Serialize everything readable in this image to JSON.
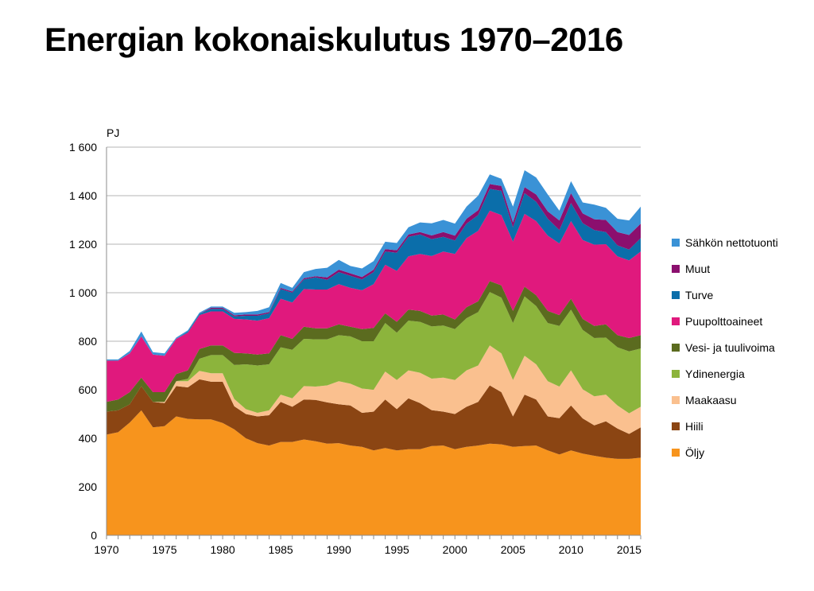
{
  "title": "Energian kokonaiskulutus 1970–2016",
  "chart_data": {
    "type": "area",
    "stacked": true,
    "title": "Energian kokonaiskulutus 1970–2016",
    "unit": "PJ",
    "xlabel": "",
    "ylabel": "PJ",
    "xlim": [
      1970,
      2016
    ],
    "ylim": [
      0,
      1600
    ],
    "y_ticks": [
      0,
      200,
      400,
      600,
      800,
      1000,
      1200,
      1400,
      1600
    ],
    "y_tick_labels": [
      "0",
      "200",
      "400",
      "600",
      "800",
      "1 000",
      "1 200",
      "1 400",
      "1 600"
    ],
    "x_ticks": [
      1970,
      1975,
      1980,
      1985,
      1990,
      1995,
      2000,
      2005,
      2010,
      2015
    ],
    "x_tick_labels": [
      "1970",
      "1975",
      "1980",
      "1985",
      "1990",
      "1995",
      "2000",
      "2005",
      "2010",
      "2015"
    ],
    "grid": true,
    "legend_position": "right",
    "x": [
      1970,
      1971,
      1972,
      1973,
      1974,
      1975,
      1976,
      1977,
      1978,
      1979,
      1980,
      1981,
      1982,
      1983,
      1984,
      1985,
      1986,
      1987,
      1988,
      1989,
      1990,
      1991,
      1992,
      1993,
      1994,
      1995,
      1996,
      1997,
      1998,
      1999,
      2000,
      2001,
      2002,
      2003,
      2004,
      2005,
      2006,
      2007,
      2008,
      2009,
      2010,
      2011,
      2012,
      2013,
      2014,
      2015,
      2016
    ],
    "series": [
      {
        "name": "Öljy",
        "color": "#f7941d",
        "values": [
          415,
          425,
          465,
          515,
          445,
          450,
          490,
          480,
          478,
          478,
          463,
          437,
          400,
          380,
          370,
          385,
          385,
          395,
          388,
          378,
          380,
          370,
          365,
          350,
          360,
          350,
          355,
          355,
          368,
          370,
          355,
          365,
          370,
          378,
          375,
          365,
          368,
          370,
          350,
          333,
          350,
          337,
          328,
          320,
          315,
          315,
          320
        ]
      },
      {
        "name": "Hiili",
        "color": "#8b4513",
        "values": [
          95,
          90,
          75,
          100,
          105,
          95,
          125,
          130,
          165,
          155,
          170,
          95,
          100,
          110,
          125,
          165,
          145,
          165,
          170,
          170,
          160,
          165,
          140,
          160,
          200,
          170,
          210,
          190,
          148,
          140,
          145,
          165,
          180,
          240,
          215,
          125,
          212,
          190,
          140,
          150,
          185,
          145,
          125,
          150,
          125,
          103,
          125
        ]
      },
      {
        "name": "Maakaasu",
        "color": "#fac08f",
        "values": [
          0,
          0,
          0,
          0,
          0,
          5,
          20,
          25,
          35,
          35,
          35,
          30,
          20,
          15,
          20,
          30,
          35,
          55,
          55,
          70,
          95,
          90,
          100,
          90,
          115,
          120,
          115,
          125,
          130,
          140,
          140,
          150,
          150,
          165,
          160,
          150,
          160,
          145,
          145,
          130,
          145,
          120,
          120,
          110,
          95,
          85,
          85
        ]
      },
      {
        "name": "Ydinenergia",
        "color": "#8cb43c",
        "values": [
          0,
          0,
          0,
          0,
          0,
          0,
          0,
          10,
          50,
          75,
          75,
          140,
          185,
          195,
          190,
          195,
          200,
          195,
          195,
          190,
          190,
          195,
          195,
          200,
          200,
          195,
          205,
          210,
          215,
          215,
          210,
          215,
          220,
          220,
          230,
          235,
          245,
          240,
          240,
          250,
          250,
          245,
          240,
          235,
          240,
          255,
          240
        ]
      },
      {
        "name": "Vesi- ja tuulivoima",
        "color": "#5b6b1f",
        "values": [
          40,
          45,
          50,
          35,
          40,
          40,
          30,
          35,
          40,
          40,
          40,
          50,
          45,
          45,
          45,
          50,
          45,
          50,
          45,
          45,
          45,
          40,
          50,
          55,
          40,
          45,
          45,
          45,
          45,
          45,
          40,
          45,
          45,
          45,
          50,
          50,
          40,
          45,
          50,
          45,
          45,
          45,
          50,
          55,
          50,
          55,
          55
        ]
      },
      {
        "name": "Puupolttoaineet",
        "color": "#e0197d",
        "values": [
          170,
          160,
          160,
          170,
          155,
          150,
          145,
          155,
          140,
          140,
          140,
          140,
          140,
          140,
          145,
          150,
          150,
          155,
          160,
          160,
          165,
          160,
          160,
          180,
          200,
          210,
          220,
          235,
          245,
          260,
          270,
          285,
          290,
          290,
          290,
          285,
          300,
          305,
          310,
          295,
          320,
          325,
          335,
          330,
          325,
          320,
          345
        ]
      },
      {
        "name": "Turve",
        "color": "#0b6eaa",
        "values": [
          0,
          0,
          0,
          0,
          0,
          0,
          0,
          5,
          5,
          10,
          10,
          10,
          15,
          20,
          20,
          40,
          40,
          40,
          50,
          40,
          50,
          50,
          45,
          50,
          55,
          75,
          80,
          80,
          70,
          60,
          55,
          60,
          65,
          90,
          100,
          60,
          85,
          80,
          70,
          55,
          75,
          70,
          60,
          50,
          45,
          45,
          55
        ]
      },
      {
        "name": "Muut",
        "color": "#8b0f6e",
        "values": [
          0,
          0,
          0,
          0,
          0,
          0,
          0,
          0,
          0,
          5,
          5,
          5,
          5,
          5,
          5,
          5,
          5,
          5,
          5,
          10,
          10,
          10,
          10,
          10,
          10,
          10,
          10,
          10,
          15,
          20,
          20,
          20,
          20,
          20,
          20,
          20,
          25,
          30,
          30,
          40,
          40,
          40,
          45,
          50,
          55,
          60,
          60
        ]
      },
      {
        "name": "Sähkön nettotuonti",
        "color": "#3a92d6",
        "values": [
          5,
          5,
          10,
          20,
          10,
          10,
          5,
          5,
          5,
          5,
          5,
          10,
          10,
          15,
          20,
          20,
          15,
          25,
          30,
          40,
          40,
          30,
          35,
          35,
          30,
          30,
          30,
          40,
          50,
          50,
          50,
          50,
          60,
          40,
          30,
          65,
          70,
          70,
          70,
          40,
          50,
          45,
          60,
          50,
          55,
          60,
          70
        ]
      }
    ]
  }
}
